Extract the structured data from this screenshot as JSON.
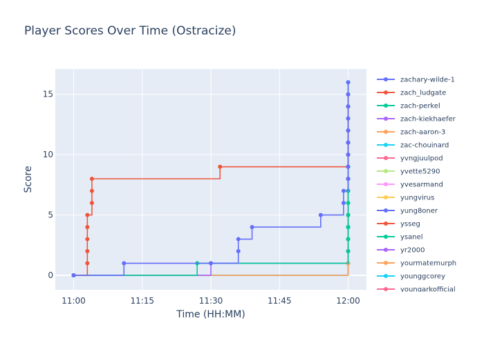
{
  "chart_data": {
    "type": "line",
    "line_shape": "step",
    "title": "Player Scores Over Time (Ostracize)",
    "xlabel": "Time (HH:MM)",
    "ylabel": "Score",
    "x_ticks": [
      "11:00",
      "11:15",
      "11:30",
      "11:45",
      "12:00"
    ],
    "y_ticks": [
      0,
      5,
      10,
      15
    ],
    "xlim": [
      "10:56",
      "12:04"
    ],
    "ylim": [
      -1.2,
      17.1
    ],
    "grid": true,
    "legend_position": "right",
    "colors": {
      "plot_background": "#e5ecf6",
      "grid": "#ffffff",
      "text": "#2a3f5f",
      "palette": [
        "#636efa",
        "#ef553b",
        "#00cc96",
        "#ab63fa",
        "#ffa15a",
        "#19d3f3",
        "#ff6692",
        "#b6e880",
        "#ff97ff",
        "#fecb52"
      ]
    },
    "series": [
      {
        "name": "zachary-wilde-1",
        "color": "#636efa",
        "points": [
          [
            "11:00",
            0
          ],
          [
            "11:11",
            1
          ],
          [
            "11:30",
            1
          ],
          [
            "11:36",
            2
          ],
          [
            "11:36",
            3
          ],
          [
            "11:39",
            4
          ],
          [
            "11:54",
            5
          ],
          [
            "11:59",
            6
          ],
          [
            "11:59",
            7
          ],
          [
            "12:00",
            8
          ],
          [
            "12:00",
            9
          ],
          [
            "12:00",
            10
          ],
          [
            "12:00",
            11
          ],
          [
            "12:00",
            12
          ],
          [
            "12:00",
            13
          ],
          [
            "12:00",
            14
          ],
          [
            "12:00",
            15
          ],
          [
            "12:00",
            16
          ]
        ]
      },
      {
        "name": "zach_ludgate",
        "color": "#ef553b",
        "points": [
          [
            "11:00",
            0
          ],
          [
            "11:03",
            1
          ],
          [
            "11:03",
            2
          ],
          [
            "11:03",
            3
          ],
          [
            "11:03",
            4
          ],
          [
            "11:03",
            5
          ],
          [
            "11:04",
            6
          ],
          [
            "11:04",
            7
          ],
          [
            "11:04",
            8
          ],
          [
            "11:32",
            9
          ],
          [
            "12:00",
            10
          ],
          [
            "12:00",
            11
          ],
          [
            "12:00",
            12
          ],
          [
            "12:00",
            13
          ],
          [
            "12:00",
            14
          ],
          [
            "12:00",
            15
          ]
        ]
      },
      {
        "name": "zach-perkel",
        "color": "#00cc96",
        "points": [
          [
            "11:00",
            0
          ],
          [
            "11:27",
            1
          ],
          [
            "12:00",
            2
          ],
          [
            "12:00",
            3
          ],
          [
            "12:00",
            4
          ],
          [
            "12:00",
            5
          ],
          [
            "12:00",
            6
          ],
          [
            "12:00",
            7
          ],
          [
            "12:00",
            8
          ],
          [
            "12:00",
            9
          ],
          [
            "12:00",
            10
          ],
          [
            "12:00",
            11
          ],
          [
            "12:00",
            12
          ],
          [
            "12:00",
            13
          ],
          [
            "12:00",
            14
          ],
          [
            "12:00",
            15
          ],
          [
            "12:00",
            16
          ]
        ]
      },
      {
        "name": "zach-kiekhaefer",
        "color": "#ab63fa",
        "points": [
          [
            "11:00",
            0
          ],
          [
            "11:30",
            1
          ],
          [
            "12:00",
            2
          ],
          [
            "12:00",
            3
          ],
          [
            "12:00",
            4
          ],
          [
            "12:00",
            5
          ],
          [
            "12:00",
            6
          ],
          [
            "12:00",
            7
          ],
          [
            "12:00",
            8
          ],
          [
            "12:00",
            9
          ],
          [
            "12:00",
            10
          ],
          [
            "12:00",
            11
          ]
        ]
      },
      {
        "name": "zach-aaron-3",
        "color": "#ffa15a",
        "points": [
          [
            "11:00",
            0
          ],
          [
            "12:00",
            1
          ],
          [
            "12:00",
            3
          ],
          [
            "12:00",
            5
          ],
          [
            "12:00",
            7
          ],
          [
            "12:00",
            9
          ],
          [
            "12:00",
            12
          ]
        ]
      },
      {
        "name": "zac-chouinard",
        "color": "#19d3f3",
        "points": [
          [
            "11:00",
            0
          ],
          [
            "12:00",
            1
          ],
          [
            "12:00",
            4
          ]
        ]
      },
      {
        "name": "yvngjuulpod",
        "color": "#ff6692",
        "points": [
          [
            "11:00",
            0
          ],
          [
            "12:00",
            2
          ],
          [
            "12:00",
            5
          ]
        ]
      },
      {
        "name": "yvette5290",
        "color": "#b6e880",
        "points": [
          [
            "11:00",
            0
          ],
          [
            "12:00",
            3
          ],
          [
            "12:00",
            6
          ]
        ]
      },
      {
        "name": "yvesarmand",
        "color": "#ff97ff",
        "points": [
          [
            "11:00",
            0
          ],
          [
            "12:00",
            2
          ],
          [
            "12:00",
            6
          ]
        ]
      },
      {
        "name": "yungvirus",
        "color": "#fecb52",
        "points": [
          [
            "11:00",
            0
          ],
          [
            "12:00",
            3
          ],
          [
            "12:00",
            12
          ]
        ]
      },
      {
        "name": "yung8oner",
        "color": "#636efa",
        "points": [
          [
            "11:00",
            0
          ],
          [
            "12:00",
            1
          ],
          [
            "12:00",
            4
          ]
        ]
      },
      {
        "name": "ysseg",
        "color": "#ef553b",
        "points": [
          [
            "11:00",
            0
          ],
          [
            "12:00",
            2
          ],
          [
            "12:00",
            5
          ]
        ]
      },
      {
        "name": "ysanel",
        "color": "#00cc96",
        "points": [
          [
            "11:00",
            0
          ],
          [
            "12:00",
            3
          ],
          [
            "12:00",
            7
          ]
        ]
      },
      {
        "name": "yr2000",
        "color": "#ab63fa",
        "points": [
          [
            "11:00",
            0
          ],
          [
            "12:00",
            2
          ],
          [
            "12:00",
            11
          ]
        ]
      },
      {
        "name": "yourmatemurph",
        "color": "#ffa15a",
        "points": [
          [
            "11:00",
            0
          ],
          [
            "12:00",
            1
          ],
          [
            "12:00",
            3
          ]
        ]
      },
      {
        "name": "younggcorey",
        "color": "#19d3f3",
        "points": [
          [
            "11:00",
            0
          ],
          [
            "12:00",
            4
          ],
          [
            "12:00",
            9
          ]
        ]
      },
      {
        "name": "youngarkofficial",
        "color": "#ff6692",
        "points": [
          [
            "11:00",
            0
          ],
          [
            "12:00",
            5
          ],
          [
            "12:00",
            8
          ]
        ]
      }
    ]
  }
}
